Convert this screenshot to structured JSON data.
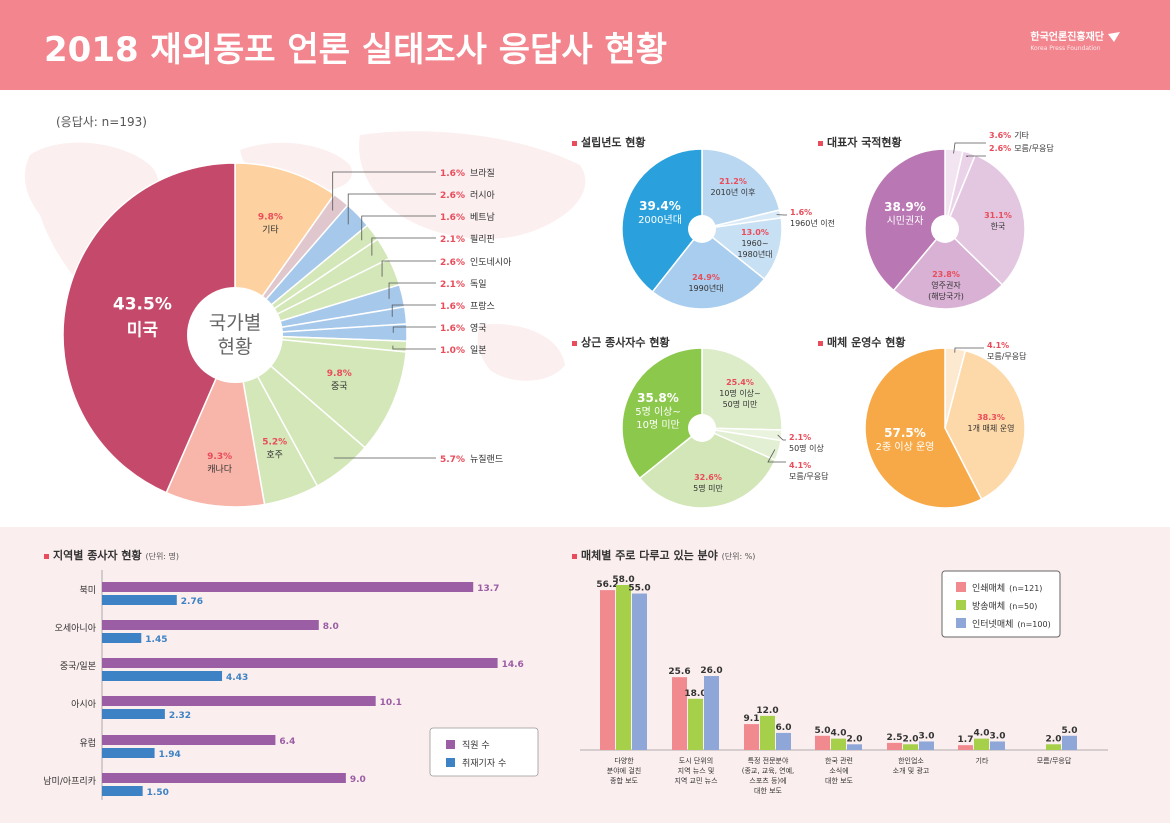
{
  "header": {
    "title": "2018 재외동포 언론 실태조사 응답사 현황",
    "logo_name": "한국언론진흥재단",
    "logo_sub": "Korea Press Foundation"
  },
  "note": "(응답사: n=193)",
  "colors": {
    "header_bg": "#f2858d",
    "accent_red": "#e94c5a"
  },
  "chart_data": [
    {
      "id": "country",
      "type": "pie",
      "title": "국가별 현황",
      "center_label_line1": "국가별",
      "center_label_line2": "현황",
      "slices": [
        {
          "label": "기타",
          "value": 9.8,
          "pct": "9.8%",
          "color": "#fdd2a0"
        },
        {
          "label": "브라질",
          "value": 1.6,
          "pct": "1.6%",
          "color": "#dfc7cd"
        },
        {
          "label": "러시아",
          "value": 2.6,
          "pct": "2.6%",
          "color": "#a6c8ea"
        },
        {
          "label": "베트남",
          "value": 1.6,
          "pct": "1.6%",
          "color": "#d4e7b8"
        },
        {
          "label": "필리핀",
          "value": 2.1,
          "pct": "2.1%",
          "color": "#d4e7b8"
        },
        {
          "label": "인도네시아",
          "value": 2.6,
          "pct": "2.6%",
          "color": "#d4e7b8"
        },
        {
          "label": "독일",
          "value": 2.1,
          "pct": "2.1%",
          "color": "#a6c8ea"
        },
        {
          "label": "프랑스",
          "value": 1.6,
          "pct": "1.6%",
          "color": "#a6c8ea"
        },
        {
          "label": "영국",
          "value": 1.6,
          "pct": "1.6%",
          "color": "#a6c8ea"
        },
        {
          "label": "일본",
          "value": 1.0,
          "pct": "1.0%",
          "color": "#d4e7b8"
        },
        {
          "label": "중국",
          "value": 9.8,
          "pct": "9.8%",
          "color": "#d4e7b8"
        },
        {
          "label": "뉴질랜드",
          "value": 5.7,
          "pct": "5.7%",
          "color": "#d4e7b8"
        },
        {
          "label": "호주",
          "value": 5.2,
          "pct": "5.2%",
          "color": "#d4e7b8"
        },
        {
          "label": "캐나다",
          "value": 9.3,
          "pct": "9.3%",
          "color": "#f8b5aa"
        },
        {
          "label": "미국",
          "value": 43.5,
          "pct": "43.5%",
          "color": "#c5496a"
        }
      ]
    },
    {
      "id": "founding",
      "type": "pie",
      "title": "설립년도 현황",
      "slices": [
        {
          "label": "2010년 이후",
          "value": 21.2,
          "pct": "21.2%",
          "color": "#b9d7f0"
        },
        {
          "label": "1960년 이전",
          "value": 1.6,
          "pct": "1.6%",
          "color": "#d8e9f7"
        },
        {
          "label": "1960~1980년대",
          "value": 13.0,
          "pct": "13.0%",
          "color": "#c8e0f4"
        },
        {
          "label": "1990년대",
          "value": 24.9,
          "pct": "24.9%",
          "color": "#a9cdee"
        },
        {
          "label": "2000년대",
          "value": 39.4,
          "pct": "39.4%",
          "color": "#2aa1dc"
        }
      ]
    },
    {
      "id": "nationality",
      "type": "pie",
      "title": "대표자 국적현황",
      "slices": [
        {
          "label": "기타",
          "value": 3.6,
          "pct": "3.6%",
          "color": "#f2e4f0"
        },
        {
          "label": "모름/무응답",
          "value": 2.6,
          "pct": "2.6%",
          "color": "#ead3e8"
        },
        {
          "label": "한국",
          "value": 31.1,
          "pct": "31.1%",
          "color": "#e3c6e0"
        },
        {
          "label": "영주권자 (해당국가)",
          "value": 23.8,
          "pct": "23.8%",
          "color": "#d8b1d4"
        },
        {
          "label": "시민권자",
          "value": 38.9,
          "pct": "38.9%",
          "color": "#b977b3"
        }
      ]
    },
    {
      "id": "employees",
      "type": "pie",
      "title": "상근 종사자수 현황",
      "slices": [
        {
          "label": "10명 이상~50명 미만",
          "value": 25.4,
          "pct": "25.4%",
          "color": "#dcebc8"
        },
        {
          "label": "50명 이상",
          "value": 2.1,
          "pct": "2.1%",
          "color": "#e9f3dd"
        },
        {
          "label": "모름/무응답",
          "value": 4.1,
          "pct": "4.1%",
          "color": "#e3efd3"
        },
        {
          "label": "5명 미만",
          "value": 32.6,
          "pct": "32.6%",
          "color": "#d2e6b8"
        },
        {
          "label": "5명 이상~10명 미만",
          "value": 35.8,
          "pct": "35.8%",
          "color": "#8cc84b"
        }
      ]
    },
    {
      "id": "media_count",
      "type": "pie",
      "title": "매체 운영수 현황",
      "slices": [
        {
          "label": "모름/무응답",
          "value": 4.1,
          "pct": "4.1%",
          "color": "#fde9cf"
        },
        {
          "label": "1개 매체 운영",
          "value": 38.3,
          "pct": "38.3%",
          "color": "#fdd8a8"
        },
        {
          "label": "2종 이상 운영",
          "value": 57.5,
          "pct": "57.5%",
          "color": "#f7a947"
        }
      ]
    },
    {
      "id": "regional",
      "type": "bar",
      "orientation": "horizontal",
      "title": "지역별 종사자 현황",
      "unit": "(단위: 명)",
      "categories": [
        "북미",
        "오세아니아",
        "중국/일본",
        "아시아",
        "유럽",
        "남미/아프리카"
      ],
      "series": [
        {
          "name": "직원 수",
          "color": "#9b5ea5",
          "values": [
            13.7,
            8.0,
            14.6,
            10.1,
            6.4,
            9.0
          ],
          "labels": [
            "13.7",
            "8.0",
            "14.6",
            "10.1",
            "6.4",
            "9.0"
          ]
        },
        {
          "name": "취재기자 수",
          "color": "#3d82c4",
          "values": [
            2.76,
            1.45,
            4.43,
            2.32,
            1.94,
            1.5
          ],
          "labels": [
            "2.76",
            "1.45",
            "4.43",
            "2.32",
            "1.94",
            "1.50"
          ]
        }
      ],
      "xlim": [
        0,
        15.5
      ]
    },
    {
      "id": "fields",
      "type": "bar",
      "title": "매체별 주로 다루고 있는 분야",
      "unit": "(단위: %)",
      "categories": [
        [
          "다양한",
          "분야에 걸친",
          "종합 보도"
        ],
        [
          "도시 단위의",
          "지역 뉴스 및",
          "지역 교민 뉴스"
        ],
        [
          "특정 전문분야",
          "(종교, 교육, 연예,",
          "스포츠 등)에",
          "대한 보도"
        ],
        [
          "한국 관련",
          "소식에",
          "대한 보도"
        ],
        [
          "한인업소",
          "소개 및 광고"
        ],
        [
          "기타"
        ],
        [
          "모름/무응답"
        ]
      ],
      "series": [
        {
          "name": "인쇄매체",
          "n": "(n=121)",
          "color": "#f08a8f",
          "values": [
            56.2,
            25.6,
            9.1,
            5.0,
            2.5,
            1.7,
            null
          ],
          "labels": [
            "56.2",
            "25.6",
            "9.1",
            "5.0",
            "2.5",
            "1.7",
            ""
          ]
        },
        {
          "name": "방송매체",
          "n": "(n=50)",
          "color": "#a6cf4a",
          "values": [
            58.0,
            18.0,
            12.0,
            4.0,
            2.0,
            4.0,
            2.0
          ],
          "labels": [
            "58.0",
            "18.0",
            "12.0",
            "4.0",
            "2.0",
            "4.0",
            "2.0"
          ]
        },
        {
          "name": "인터넷매체",
          "n": "(n=100)",
          "color": "#8ea7d8",
          "values": [
            55.0,
            26.0,
            6.0,
            2.0,
            3.0,
            3.0,
            5.0
          ],
          "labels": [
            "55.0",
            "26.0",
            "6.0",
            "2.0",
            "3.0",
            "3.0",
            "5.0"
          ]
        }
      ],
      "ylim": [
        0,
        65
      ]
    }
  ]
}
